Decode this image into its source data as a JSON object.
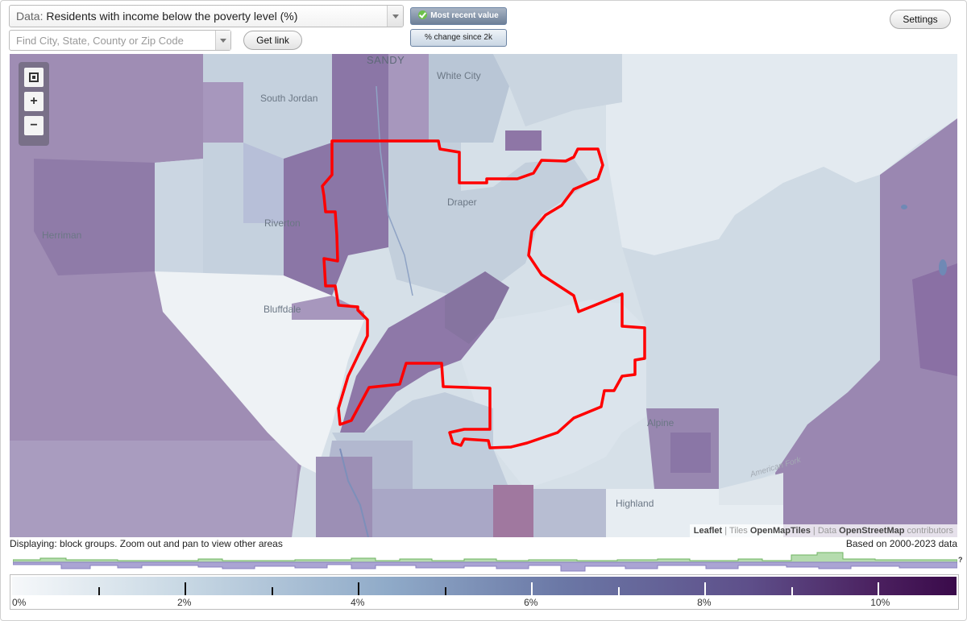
{
  "data_selector": {
    "prefix": "Data:",
    "label": "Residents with income below the poverty level (%)"
  },
  "search": {
    "placeholder": "Find City, State, County or Zip Code"
  },
  "buttons": {
    "get_link": "Get link",
    "most_recent": "Most recent value",
    "pct_change": "% change since 2k",
    "settings": "Settings"
  },
  "map": {
    "places": {
      "sandy": "SANDY",
      "white_city": "White City",
      "south_jordan": "South Jordan",
      "riverton": "Riverton",
      "herriman": "Herriman",
      "draper": "Draper",
      "bluffdale": "Bluffdale",
      "alpine": "Alpine",
      "highland": "Highland",
      "american_fork": "American Fork"
    },
    "attribution": {
      "leaflet": "Leaflet",
      "tiles_prefix": "Tiles",
      "tiles": "OpenMapTiles",
      "data_prefix": "Data",
      "data": "OpenStreetMap",
      "contributors": "contributors"
    }
  },
  "footer": {
    "displaying": "Displaying: block groups. Zoom out and pan to view other areas",
    "based_on": "Based on 2000-2023 data",
    "hist_question": "?"
  },
  "legend": {
    "labels": [
      "0%",
      "2%",
      "4%",
      "6%",
      "8%",
      "10%"
    ],
    "min": 0,
    "max": 10.9,
    "major_step": 2,
    "minor_step": 1
  },
  "colors": {
    "boundary": "#ff0000",
    "hist_up": "#99d18f",
    "hist_down": "#9b93c9"
  }
}
